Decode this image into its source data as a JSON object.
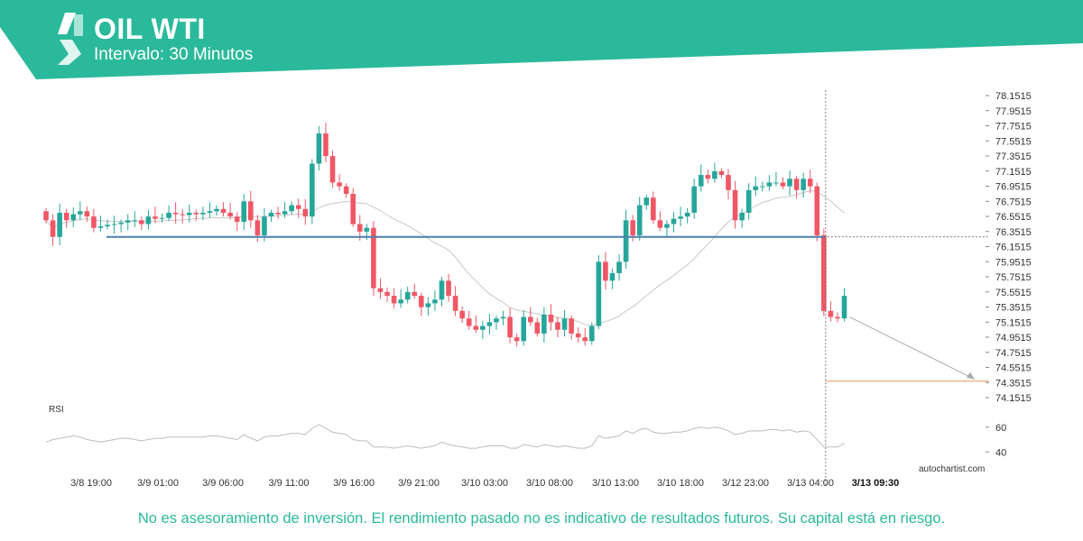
{
  "header": {
    "title": "OIL WTI",
    "subtitle": "Intervalo: 30 Minutos"
  },
  "colors": {
    "brand": "#2bb99b",
    "up": "#26a69a",
    "down": "#ef5766",
    "level": "#4a7fae",
    "target": "#f0a070",
    "ma": "#c8c8c8"
  },
  "icons": {
    "logo": "autochartist-logo-icon"
  },
  "chart_data": {
    "type": "candlestick",
    "instrument": "OIL WTI",
    "interval": "30 Minutos",
    "y_ticks": [
      "78.1515",
      "77.9515",
      "77.7515",
      "77.5515",
      "77.3515",
      "77.1515",
      "76.9515",
      "76.7515",
      "76.5515",
      "76.3515",
      "76.1515",
      "75.9515",
      "75.7515",
      "75.5515",
      "75.3515",
      "75.1515",
      "74.9515",
      "74.7515",
      "74.5515",
      "74.3515",
      "74.1515"
    ],
    "ylim": [
      74.1515,
      78.1515
    ],
    "x_ticks": [
      "3/8 19:00",
      "3/9 01:00",
      "3/9 06:00",
      "3/9 11:00",
      "3/9 16:00",
      "3/9 21:00",
      "3/10 03:00",
      "3/10 08:00",
      "3/10 13:00",
      "3/10 18:00",
      "3/12 23:00",
      "3/13 04:00",
      "3/13 09:30"
    ],
    "highlighted_x_tick": "3/13 09:30",
    "support_level": 76.28,
    "target_level": 74.37,
    "current_price": 75.37,
    "rsi_label": "RSI",
    "rsi_ticks": [
      "60",
      "40"
    ],
    "watermark": "autochartist.com",
    "closes": [
      76.5,
      76.28,
      76.6,
      76.5,
      76.58,
      76.62,
      76.55,
      76.4,
      76.42,
      76.44,
      76.45,
      76.47,
      76.5,
      76.5,
      76.45,
      76.55,
      76.52,
      76.53,
      76.6,
      76.58,
      76.57,
      76.6,
      76.58,
      76.6,
      76.62,
      76.65,
      76.6,
      76.55,
      76.48,
      76.75,
      76.5,
      76.3,
      76.55,
      76.6,
      76.58,
      76.62,
      76.7,
      76.65,
      76.55,
      77.25,
      77.65,
      77.35,
      77.0,
      76.95,
      76.85,
      76.45,
      76.35,
      76.4,
      75.6,
      75.55,
      75.5,
      75.4,
      75.45,
      75.55,
      75.5,
      75.35,
      75.4,
      75.45,
      75.7,
      75.5,
      75.3,
      75.2,
      75.1,
      75.05,
      75.1,
      75.15,
      75.2,
      75.22,
      74.95,
      74.9,
      75.22,
      75.15,
      75.0,
      75.25,
      75.15,
      75.05,
      75.2,
      75.0,
      74.95,
      74.9,
      75.1,
      75.95,
      75.7,
      75.8,
      75.95,
      76.5,
      76.3,
      76.7,
      76.8,
      76.5,
      76.4,
      76.45,
      76.52,
      76.55,
      76.6,
      76.95,
      77.1,
      77.05,
      77.15,
      77.1,
      76.9,
      76.5,
      76.6,
      76.9,
      76.95,
      76.95,
      77.0,
      77.0,
      76.95,
      77.05,
      76.9,
      77.05,
      76.95,
      76.3,
      75.3,
      75.22,
      75.2,
      75.5
    ],
    "rsi": [
      48,
      50,
      51,
      52,
      53,
      52,
      50,
      49,
      48,
      49,
      50,
      51,
      51,
      50,
      49,
      50,
      51,
      51,
      52,
      52,
      52,
      52,
      52,
      52,
      53,
      53,
      52,
      51,
      50,
      54,
      51,
      49,
      52,
      53,
      53,
      54,
      55,
      55,
      54,
      59,
      62,
      59,
      56,
      55,
      54,
      50,
      49,
      49,
      44,
      44,
      44,
      43,
      44,
      45,
      44,
      43,
      44,
      45,
      48,
      46,
      45,
      44,
      43,
      43,
      44,
      45,
      45,
      45,
      43,
      43,
      46,
      45,
      44,
      46,
      45,
      44,
      45,
      44,
      43,
      43,
      45,
      53,
      51,
      52,
      53,
      57,
      55,
      58,
      59,
      56,
      55,
      55,
      56,
      56,
      57,
      59,
      60,
      59,
      60,
      59,
      57,
      54,
      55,
      57,
      57,
      57,
      58,
      58,
      57,
      58,
      56,
      57,
      56,
      50,
      44,
      44,
      44,
      47
    ]
  },
  "footer": {
    "disclaimer": "No es asesoramiento de inversión. El rendimiento pasado no es indicativo de resultados futuros. Su capital está en riesgo."
  }
}
